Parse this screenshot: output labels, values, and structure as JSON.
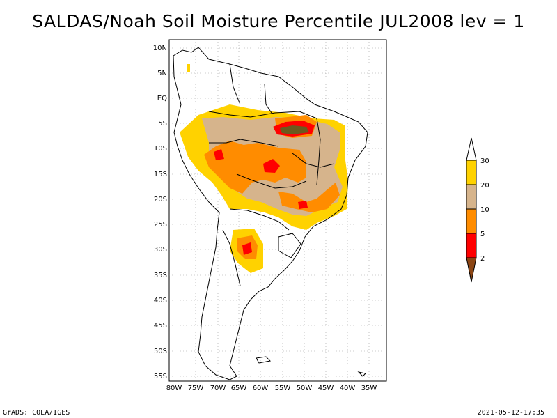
{
  "title": "SALDAS/Noah Soil Moisture Percentile JUL2008 lev = 1",
  "footer": {
    "left": "GrADS: COLA/IGES",
    "right": "2021-05-12-17:35"
  },
  "map": {
    "lon_range": [
      -80,
      -30
    ],
    "lat_range": [
      -56,
      12
    ],
    "lon_ticks": [
      "80W",
      "75W",
      "70W",
      "65W",
      "60W",
      "55W",
      "50W",
      "45W",
      "40W",
      "35W"
    ],
    "lat_ticks": [
      "10N",
      "5N",
      "EQ",
      "5S",
      "10S",
      "15S",
      "20S",
      "25S",
      "30S",
      "35S",
      "40S",
      "45S",
      "50S",
      "55S"
    ],
    "grid": "dotted"
  },
  "colorbar": {
    "labels": [
      "30",
      "20",
      "10",
      "5",
      "2"
    ],
    "colors": {
      "above_30": "#ffffff",
      "20_30": "#ffd200",
      "10_20": "#d6b48c",
      "5_10": "#ff8c00",
      "2_5": "#ff0000",
      "below_2": "#8b4513"
    }
  }
}
